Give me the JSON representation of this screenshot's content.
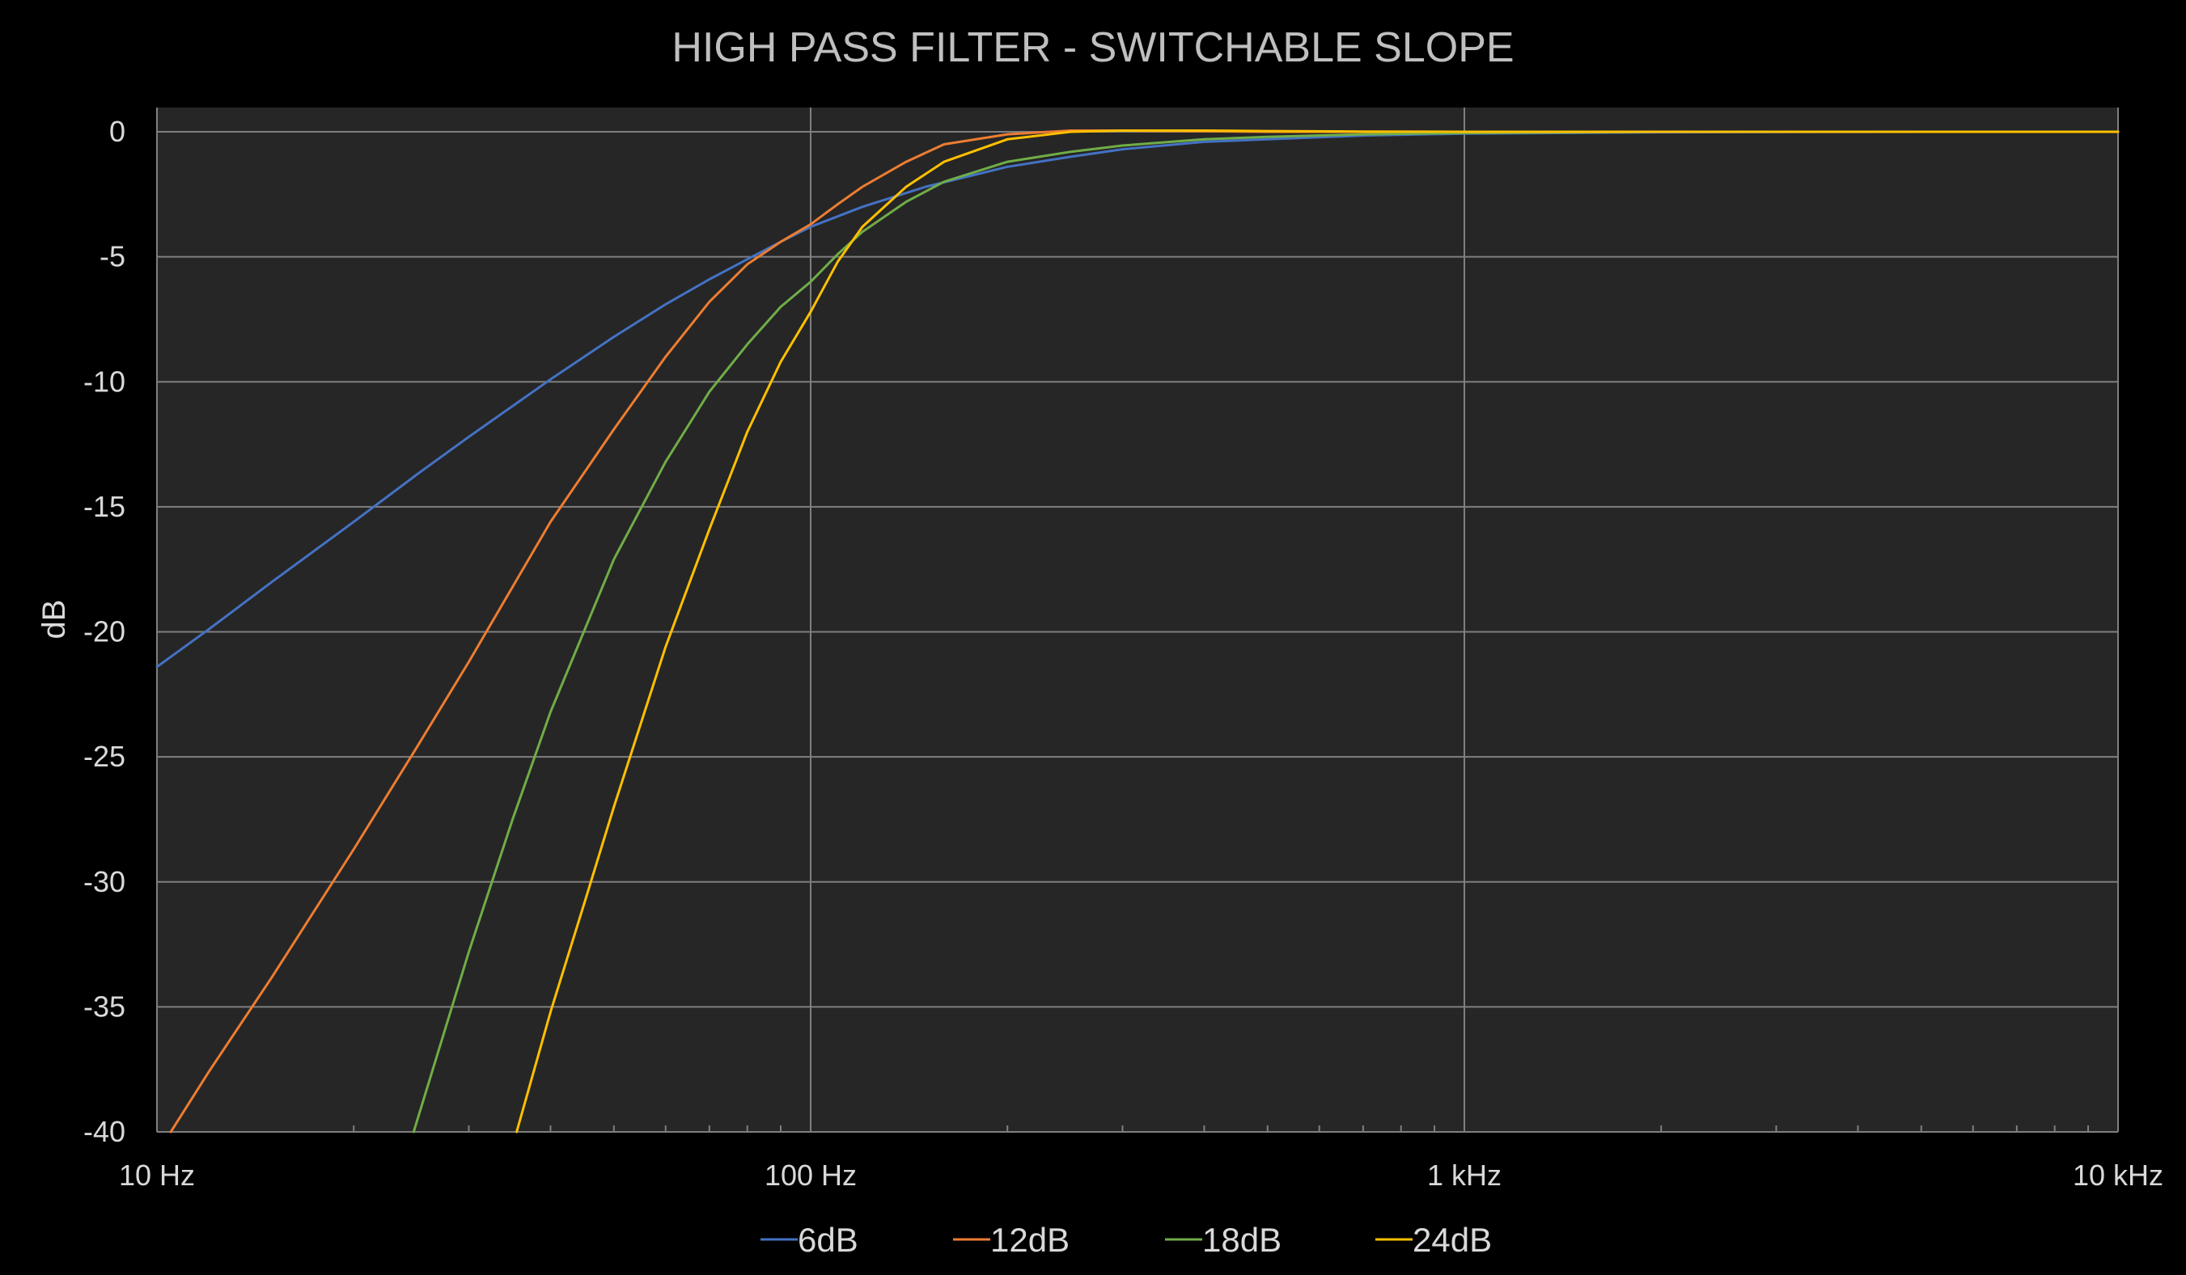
{
  "chart_data": {
    "type": "line",
    "title": "HIGH PASS FILTER - SWITCHABLE SLOPE",
    "xlabel": "",
    "ylabel": "dB",
    "x_scale": "log",
    "xlim": [
      10,
      10000
    ],
    "ylim": [
      -40,
      1
    ],
    "x_ticks": [
      {
        "value": 10,
        "label": "10 Hz"
      },
      {
        "value": 100,
        "label": "100 Hz"
      },
      {
        "value": 1000,
        "label": "1 kHz"
      },
      {
        "value": 10000,
        "label": "10 kHz"
      }
    ],
    "y_ticks": [
      {
        "value": 0,
        "label": "0"
      },
      {
        "value": -5,
        "label": "-5"
      },
      {
        "value": -10,
        "label": "-10"
      },
      {
        "value": -15,
        "label": "-15"
      },
      {
        "value": -20,
        "label": "-20"
      },
      {
        "value": -25,
        "label": "-25"
      },
      {
        "value": -30,
        "label": "-30"
      },
      {
        "value": -35,
        "label": "-35"
      },
      {
        "value": -40,
        "label": "-40"
      }
    ],
    "grid": true,
    "legend_position": "bottom",
    "series": [
      {
        "name": "6dB",
        "color": "#4472c4",
        "x": [
          10,
          12,
          15,
          20,
          25,
          30,
          40,
          50,
          60,
          70,
          80,
          90,
          100,
          120,
          150,
          200,
          250,
          300,
          400,
          500,
          700,
          1000,
          2000,
          5000,
          10000
        ],
        "y": [
          -21.4,
          -19.9,
          -18.0,
          -15.6,
          -13.7,
          -12.2,
          -9.9,
          -8.2,
          -6.9,
          -5.9,
          -5.1,
          -4.4,
          -3.8,
          -3.0,
          -2.2,
          -1.4,
          -1.0,
          -0.7,
          -0.4,
          -0.3,
          -0.15,
          -0.07,
          -0.02,
          0,
          0
        ]
      },
      {
        "name": "12dB",
        "color": "#ed7d31",
        "x": [
          10.5,
          12,
          15,
          20,
          25,
          30,
          40,
          50,
          60,
          70,
          80,
          90,
          100,
          110,
          120,
          140,
          160,
          200,
          250,
          300,
          400,
          500,
          700,
          1000,
          2000,
          5000,
          10000
        ],
        "y": [
          -40,
          -37.6,
          -33.8,
          -28.7,
          -24.6,
          -21.2,
          -15.6,
          -11.9,
          -9.0,
          -6.8,
          -5.3,
          -4.4,
          -3.7,
          -2.9,
          -2.2,
          -1.2,
          -0.5,
          -0.1,
          0.05,
          0.05,
          0.02,
          0,
          0,
          0,
          0,
          0,
          0
        ]
      },
      {
        "name": "18dB",
        "color": "#70ad47",
        "x": [
          24.7,
          30,
          35,
          40,
          50,
          60,
          70,
          80,
          90,
          100,
          110,
          120,
          140,
          160,
          200,
          250,
          300,
          400,
          500,
          700,
          1000,
          2000,
          5000,
          10000
        ],
        "y": [
          -40,
          -32.8,
          -27.5,
          -23.2,
          -17.1,
          -13.2,
          -10.4,
          -8.5,
          -7.0,
          -6.0,
          -4.9,
          -4.0,
          -2.8,
          -2.0,
          -1.2,
          -0.8,
          -0.55,
          -0.3,
          -0.2,
          -0.1,
          -0.05,
          0,
          0,
          0
        ]
      },
      {
        "name": "24dB",
        "color": "#ffc000",
        "x": [
          35.5,
          40,
          45,
          50,
          60,
          70,
          80,
          90,
          100,
          110,
          120,
          140,
          160,
          200,
          250,
          300,
          400,
          500,
          700,
          1000,
          2000,
          5000,
          10000
        ],
        "y": [
          -40,
          -35.2,
          -30.9,
          -27.0,
          -20.6,
          -15.9,
          -12.0,
          -9.2,
          -7.2,
          -5.2,
          -3.8,
          -2.2,
          -1.2,
          -0.3,
          0,
          0.05,
          0.05,
          0.03,
          0.01,
          0,
          0,
          0,
          0
        ]
      }
    ]
  }
}
